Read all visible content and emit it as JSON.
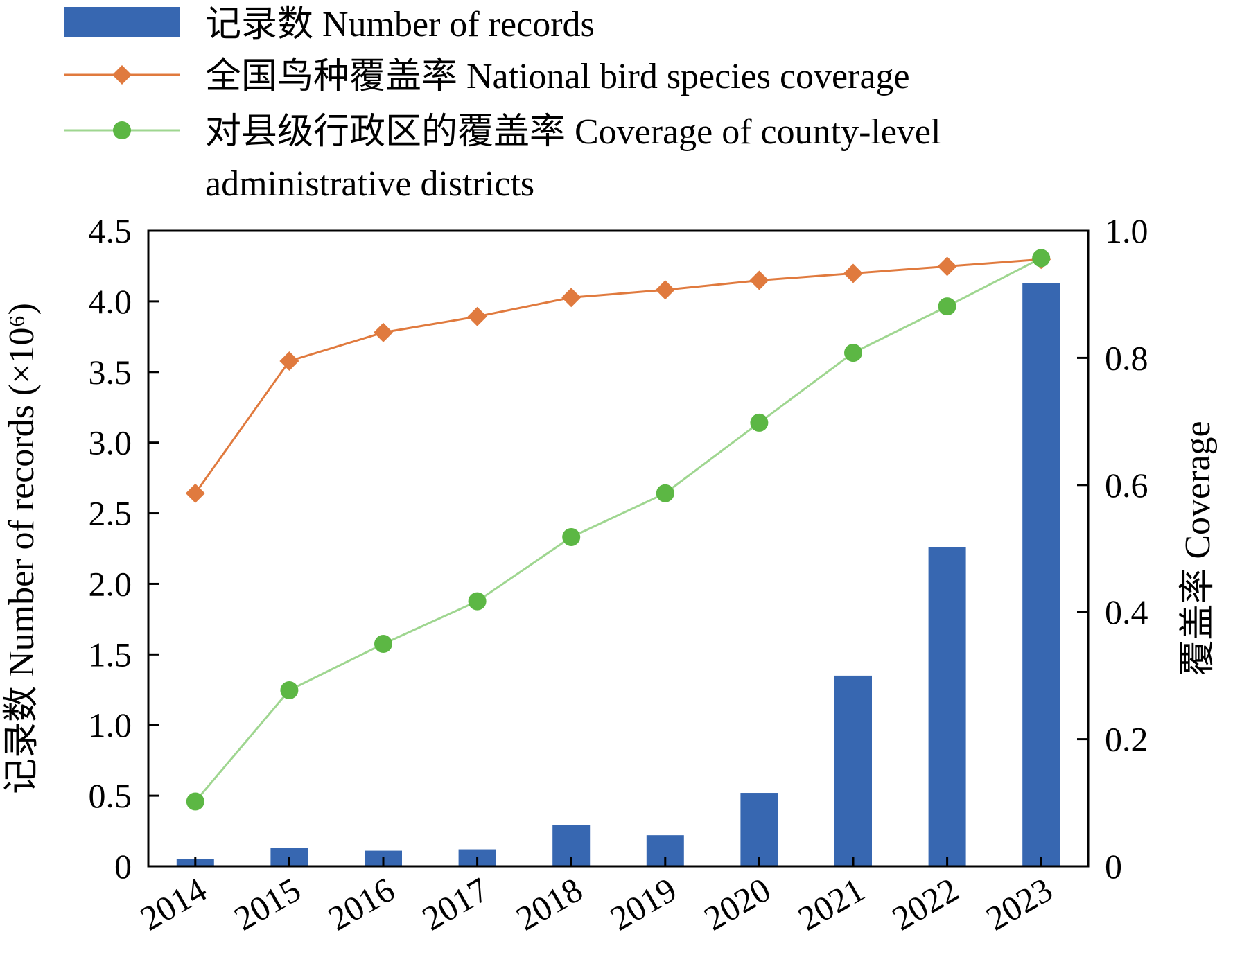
{
  "chart_data": {
    "type": "bar",
    "categories": [
      "2014",
      "2015",
      "2016",
      "2017",
      "2018",
      "2019",
      "2020",
      "2021",
      "2022",
      "2023"
    ],
    "series": [
      {
        "name": "记录数 Number of records",
        "type": "bar",
        "axis": "left",
        "values": [
          0.05,
          0.13,
          0.11,
          0.12,
          0.29,
          0.22,
          0.52,
          1.35,
          2.26,
          4.13
        ],
        "color": "#3767b1"
      },
      {
        "name": "全国鸟种覆盖率 National bird species coverage",
        "type": "line",
        "axis": "right",
        "marker": "diamond",
        "values": [
          0.587,
          0.795,
          0.84,
          0.865,
          0.895,
          0.907,
          0.922,
          0.933,
          0.944,
          0.955
        ],
        "color": "#e07a3e"
      },
      {
        "name_lines": [
          "对县级行政区的覆盖率 Coverage of county-level",
          "administrative districts"
        ],
        "type": "line",
        "axis": "right",
        "marker": "circle",
        "values": [
          0.102,
          0.277,
          0.35,
          0.417,
          0.518,
          0.587,
          0.698,
          0.808,
          0.881,
          0.957
        ],
        "color": "#5cb744",
        "line_color": "#9fd690"
      }
    ],
    "y_left": {
      "label": "记录数 Number of records (×10⁶)",
      "range": [
        0,
        4.5
      ],
      "ticks": [
        0,
        0.5,
        1.0,
        1.5,
        2.0,
        2.5,
        3.0,
        3.5,
        4.0,
        4.5
      ],
      "tick_labels": [
        "0",
        "0.5",
        "1.0",
        "1.5",
        "2.0",
        "2.5",
        "3.0",
        "3.5",
        "4.0",
        "4.5"
      ]
    },
    "y_right": {
      "label": "覆盖率 Coverage",
      "range": [
        0,
        1.0
      ],
      "ticks": [
        0,
        0.2,
        0.4,
        0.6,
        0.8,
        1.0
      ],
      "tick_labels": [
        "0",
        "0.2",
        "0.4",
        "0.6",
        "0.8",
        "1.0"
      ]
    },
    "legend_position": "top",
    "grid": false
  }
}
